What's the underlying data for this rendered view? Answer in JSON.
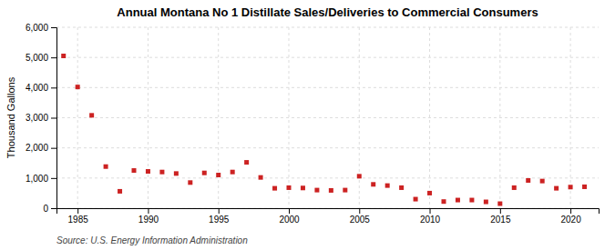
{
  "chart_data": {
    "type": "scatter",
    "title": "Annual Montana No 1 Distillate Sales/Deliveries to Commercial Consumers",
    "ylabel": "Thousand Gallons",
    "source": "Source: U.S. Energy Information Administration",
    "x": [
      1984,
      1985,
      1986,
      1987,
      1988,
      1989,
      1990,
      1991,
      1992,
      1993,
      1994,
      1995,
      1996,
      1997,
      1998,
      1999,
      2000,
      2001,
      2002,
      2003,
      2004,
      2005,
      2006,
      2007,
      2008,
      2009,
      2010,
      2011,
      2012,
      2013,
      2014,
      2015,
      2016,
      2017,
      2018,
      2019,
      2020,
      2021
    ],
    "values": [
      5050,
      4020,
      3080,
      1380,
      560,
      1250,
      1220,
      1200,
      1150,
      850,
      1170,
      1100,
      1200,
      1520,
      1020,
      660,
      680,
      670,
      600,
      590,
      600,
      1060,
      790,
      750,
      680,
      300,
      500,
      220,
      270,
      270,
      210,
      150,
      680,
      920,
      900,
      660,
      700,
      710
    ],
    "color": "#cc2222",
    "marker": "square",
    "grid": true,
    "xlim": [
      1983.5,
      2022
    ],
    "xticks": [
      1985,
      1990,
      1995,
      2000,
      2005,
      2010,
      2015,
      2020
    ],
    "ylim": [
      0,
      6000
    ],
    "yticks": [
      0,
      {
        "value": 1000,
        "label": "1,000"
      },
      {
        "value": 2000,
        "label": "2,000"
      },
      {
        "value": 3000,
        "label": "3,000"
      },
      {
        "value": 4000,
        "label": "4,000"
      },
      {
        "value": 5000,
        "label": "5,000"
      },
      {
        "value": 6000,
        "label": "6,000"
      }
    ]
  }
}
